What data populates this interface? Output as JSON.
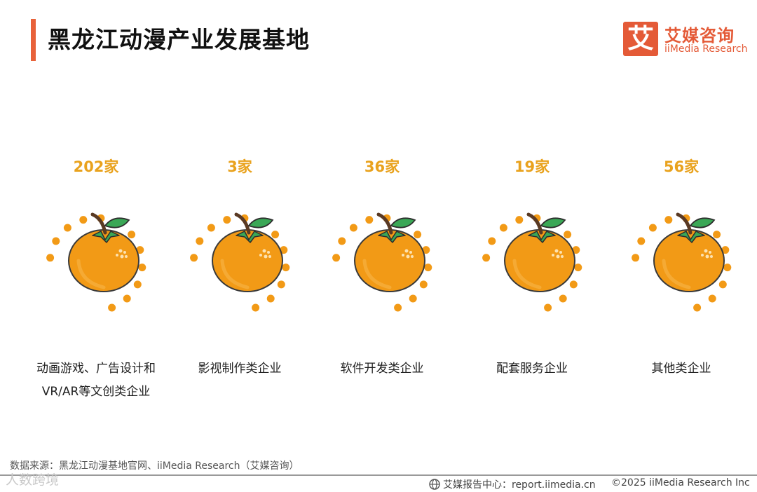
{
  "header": {
    "title": "黑龙江动漫产业发展基地"
  },
  "logo": {
    "mark": "艾",
    "name_cn": "艾媒咨询",
    "name_en": "iiMedia Research"
  },
  "cards": [
    {
      "count": "202家",
      "label_line1": "动画游戏、广告设计和",
      "label_line2": "VR/AR等文创类企业"
    },
    {
      "count": "3家",
      "label_line1": "影视制作类企业",
      "label_line2": ""
    },
    {
      "count": "36家",
      "label_line1": "软件开发类企业",
      "label_line2": ""
    },
    {
      "count": "19家",
      "label_line1": "配套服务企业",
      "label_line2": ""
    },
    {
      "count": "56家",
      "label_line1": "其他类企业",
      "label_line2": ""
    }
  ],
  "footer": {
    "source": "数据来源：黑龙江动漫基地官网、iiMedia Research（艾媒咨询）",
    "watermark": "人数跨境",
    "report_site": "艾媒报告中心：report.iimedia.cn",
    "copyright": "©2025  iiMedia Research  Inc"
  },
  "colors": {
    "accent": "#e8623a",
    "count_text": "#e9a21d",
    "orange_fill": "#f29a16",
    "dot": "#f29a16",
    "leaf": "#3aa756"
  }
}
